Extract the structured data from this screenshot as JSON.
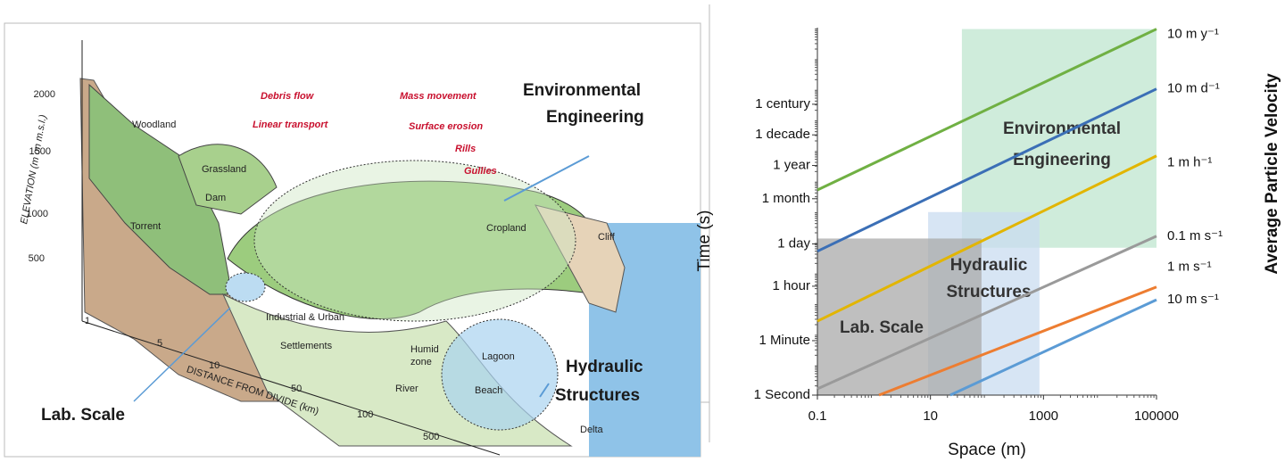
{
  "illustration": {
    "process_labels": [
      "Debris flow",
      "Linear transport",
      "Mass movement",
      "Surface erosion",
      "Rills",
      "Gullies"
    ],
    "feature_labels": [
      "Woodland",
      "Grassland",
      "Dam",
      "Torrent",
      "Cropland",
      "Cliff",
      "Industrial & Urban",
      "Settlements",
      "Lagoon",
      "River",
      "Beach",
      "Delta"
    ],
    "humid_zone": [
      "Humid",
      "zone"
    ],
    "elevation_title": "ELEVATION (m on m.s.l.)",
    "elevation_ticks": [
      2000,
      1500,
      1000,
      500
    ],
    "distance_title": "DISTANCE FROM DIVIDE (km)",
    "distance_ticks": [
      1,
      5,
      10,
      50,
      100,
      500
    ],
    "environmental_engineering": [
      "Environmental",
      "Engineering"
    ],
    "hydraulic_structures": [
      "Hydraulic",
      "Structures"
    ],
    "lab_scale": "Lab. Scale"
  },
  "chart_data": {
    "type": "line",
    "x_label": "Space (m)",
    "y_label": "Time (s)",
    "y2_label": "Average Particle Velocity",
    "x_log": true,
    "y_log": true,
    "grid": false,
    "xlim": [
      0.1,
      100000
    ],
    "xticks": [
      0.1,
      10,
      1000,
      100000
    ],
    "ylim": [
      1,
      1000000000000
    ],
    "yticks": [
      {
        "value": 1,
        "label": "1 Second"
      },
      {
        "value": 60,
        "label": "1 Minute"
      },
      {
        "value": 3600,
        "label": "1 hour"
      },
      {
        "value": 86400,
        "label": "1 day"
      },
      {
        "value": 2592000,
        "label": "1 month"
      },
      {
        "value": 31536000,
        "label": "1 year"
      },
      {
        "value": 315360000,
        "label": "1 decade"
      },
      {
        "value": 3153600000,
        "label": "1 century"
      }
    ],
    "regions": [
      {
        "name": [
          "Environmental",
          "Engineering"
        ],
        "color": "#bfe6cf",
        "x": [
          36,
          100000
        ],
        "y": [
          65000,
          900000000000
        ]
      },
      {
        "name": [
          "Hydraulic",
          "Structures"
        ],
        "color": "#cadcf0",
        "x": [
          9.1,
          850
        ],
        "y": [
          1,
          950000
        ]
      },
      {
        "name": [
          "Lab. Scale"
        ],
        "color": "#a9a9a9",
        "x": [
          0.1,
          80
        ],
        "y": [
          1,
          130000
        ]
      }
    ],
    "series": [
      {
        "name": "10 m y⁻¹",
        "color": "#70b043",
        "x": [
          0.1,
          100000
        ],
        "values": [
          5000000,
          900000000000
        ]
      },
      {
        "name": "10 m d⁻¹",
        "color": "#3b6fb6",
        "x": [
          0.1,
          100000
        ],
        "values": [
          50000,
          10000000000
        ]
      },
      {
        "name": "1 m h⁻¹",
        "color": "#e2b500",
        "x": [
          0.1,
          100000
        ],
        "values": [
          260,
          65000000
        ]
      },
      {
        "name": "0.1 m s⁻¹",
        "color": "#9a9a9a",
        "x": [
          0.1,
          100000
        ],
        "values": [
          1.6,
          155000
        ]
      },
      {
        "name": "1 m s⁻¹",
        "color": "#ed7d31",
        "x": [
          1.23,
          100000
        ],
        "values": [
          1,
          3400
        ]
      },
      {
        "name": "10 m s⁻¹",
        "color": "#5b9bd5",
        "x": [
          22.4,
          100000
        ],
        "values": [
          1,
          1300
        ]
      }
    ]
  }
}
